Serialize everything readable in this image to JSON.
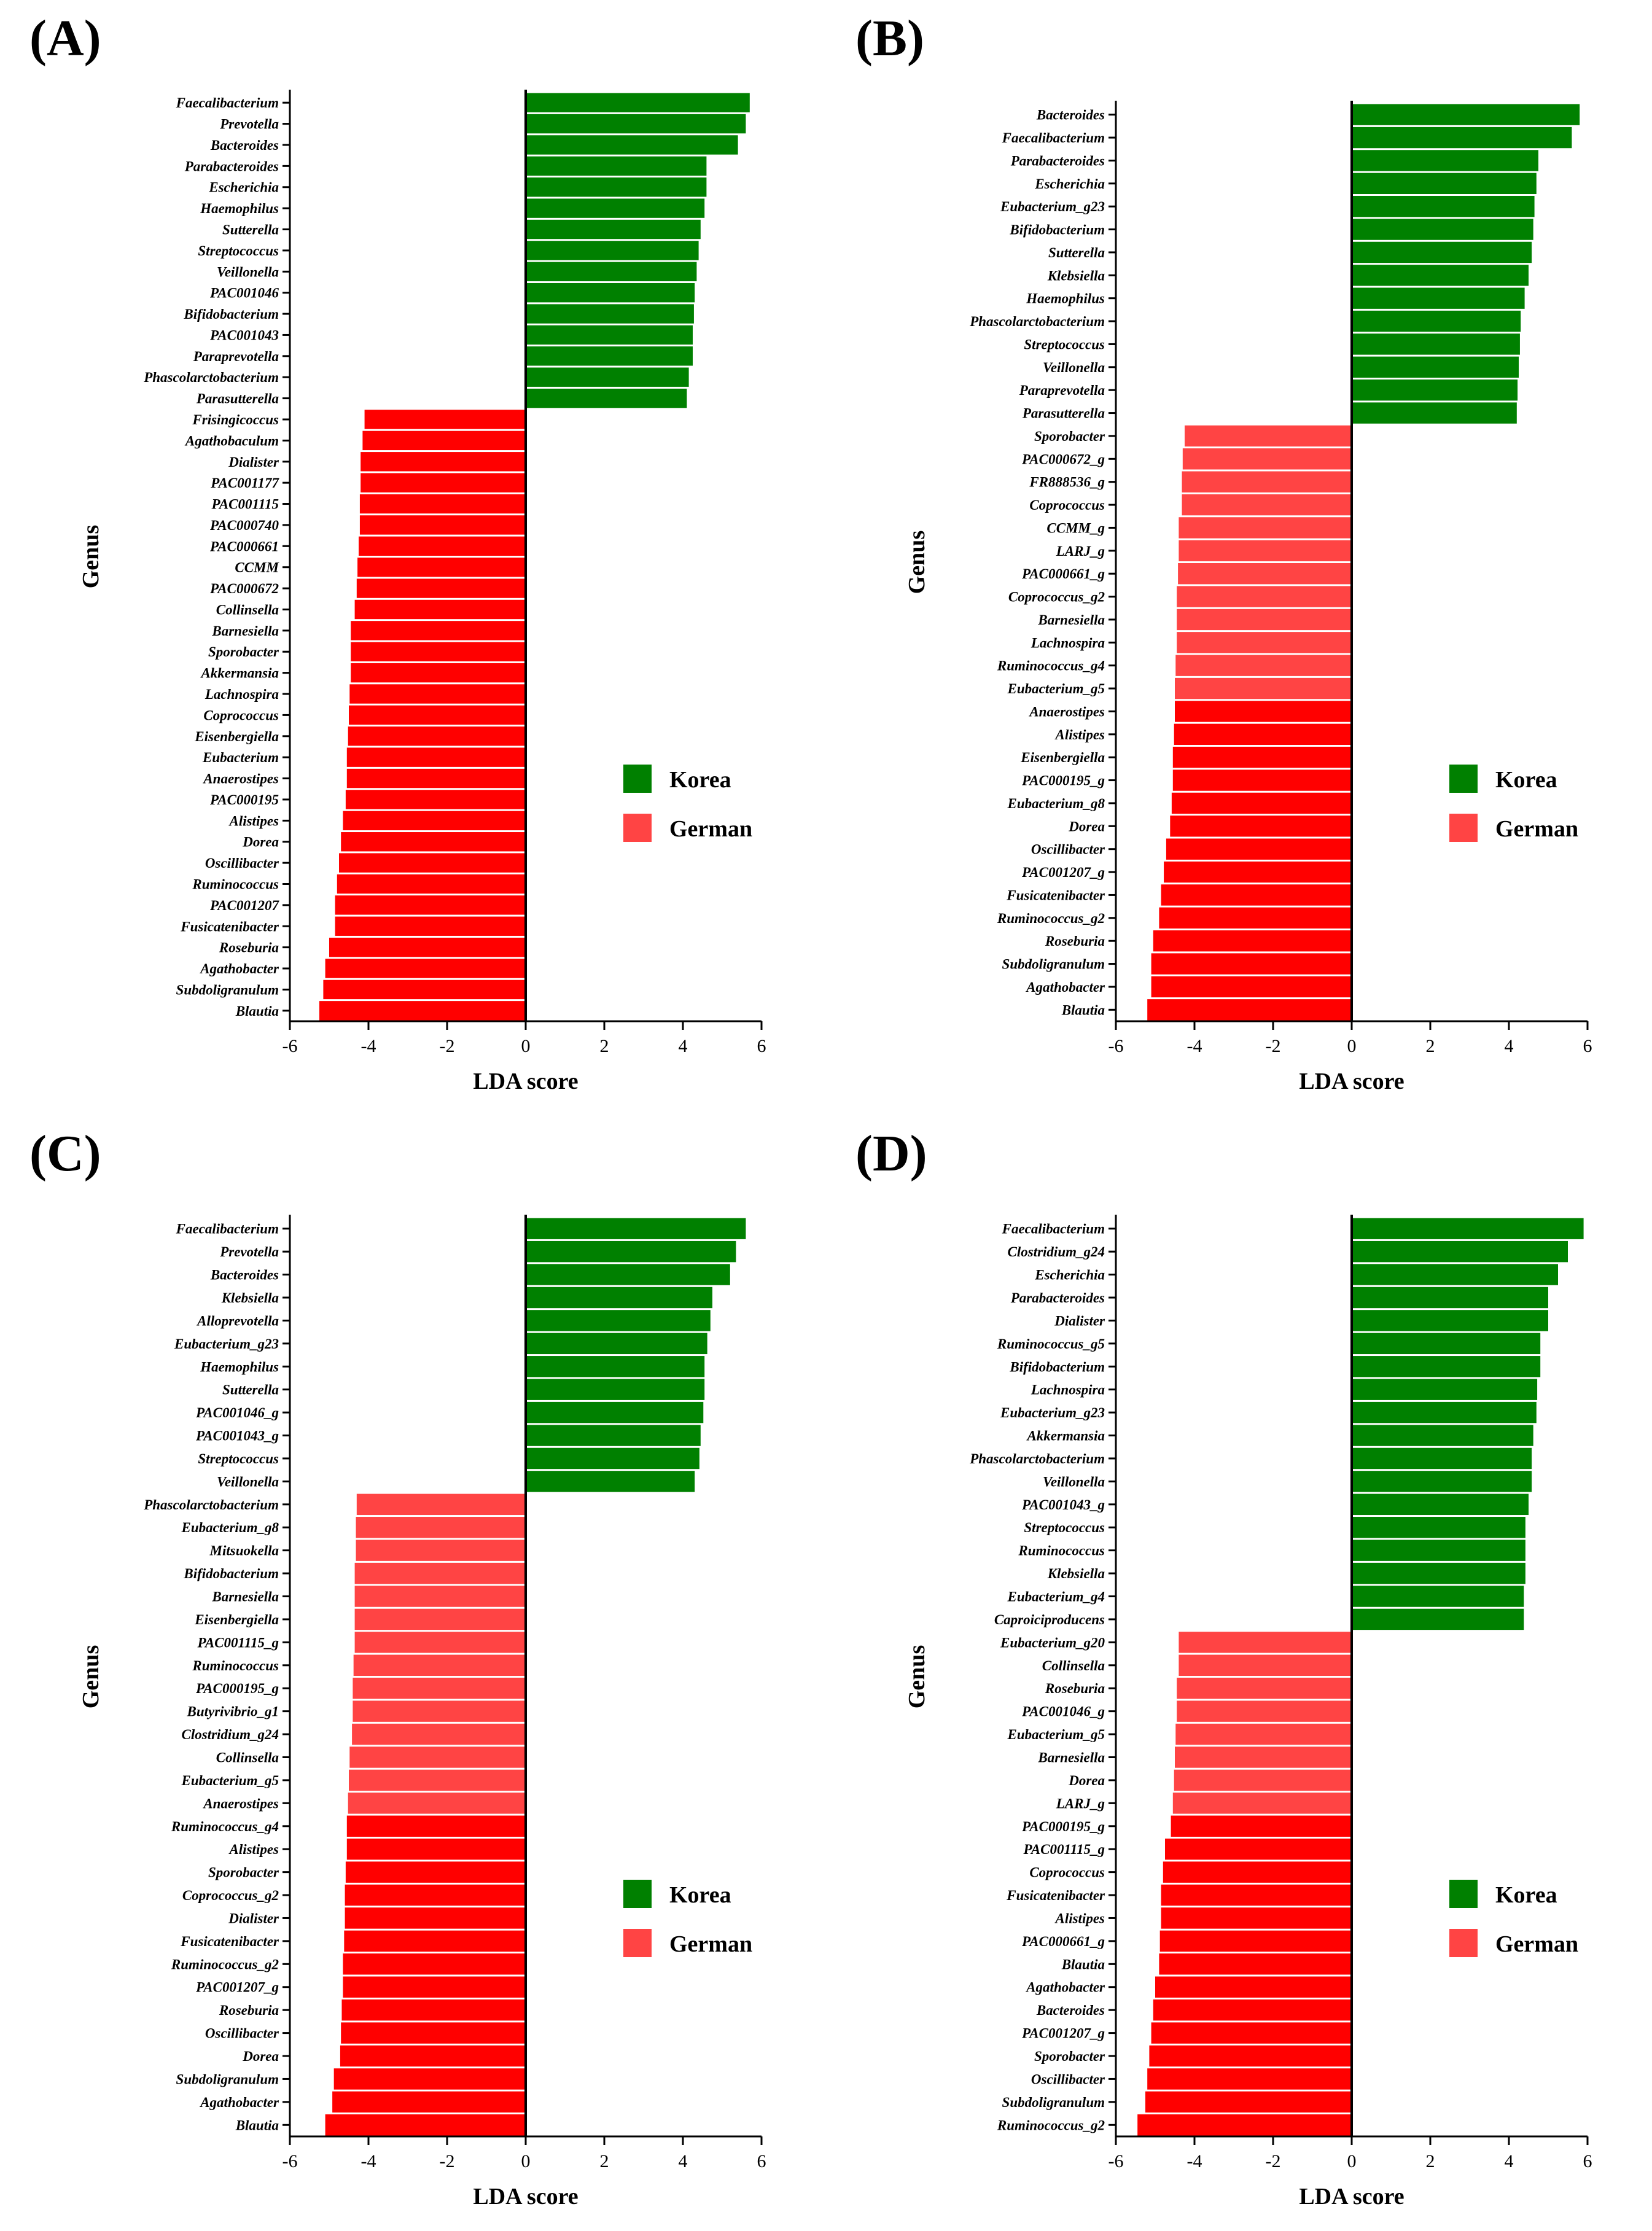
{
  "legend": {
    "korea": "Korea",
    "german": "German"
  },
  "colors": {
    "korea": "#008000",
    "german_strong": "#ff0000",
    "german_light": "#ff4444",
    "axis": "#000000"
  },
  "chart_data": [
    {
      "type": "bar",
      "panel_label": "(A)",
      "xlabel": "LDA score",
      "ylabel": "Genus",
      "xlim": [
        -6,
        6
      ],
      "xticks": [
        "-6",
        "-4",
        "-2",
        "0",
        "2",
        "4",
        "6"
      ],
      "series_style": "strong",
      "categories": [
        "Faecalibacterium",
        "Prevotella",
        "Bacteroides",
        "Parabacteroides",
        "Escherichia",
        "Haemophilus",
        "Sutterella",
        "Streptococcus",
        "Veillonella",
        "PAC001046",
        "Bifidobacterium",
        "PAC001043",
        "Paraprevotella",
        "Phascolarctobacterium",
        "Parasutterella",
        "Frisingicoccus",
        "Agathobaculum",
        "Dialister",
        "PAC001177",
        "PAC001115",
        "PAC000740",
        "PAC000661",
        "CCMM",
        "PAC000672",
        "Collinsella",
        "Barnesiella",
        "Sporobacter",
        "Akkermansia",
        "Lachnospira",
        "Coprococcus",
        "Eisenbergiella",
        "Eubacterium",
        "Anaerostipes",
        "PAC000195",
        "Alistipes",
        "Dorea",
        "Oscillibacter",
        "Ruminococcus",
        "PAC001207",
        "Fusicatenibacter",
        "Roseburia",
        "Agathobacter",
        "Subdoligranulum",
        "Blautia"
      ],
      "values": [
        5.7,
        5.6,
        5.4,
        4.6,
        4.6,
        4.55,
        4.45,
        4.4,
        4.35,
        4.3,
        4.28,
        4.25,
        4.25,
        4.15,
        4.1,
        -4.1,
        -4.15,
        -4.2,
        -4.2,
        -4.22,
        -4.22,
        -4.25,
        -4.28,
        -4.3,
        -4.35,
        -4.45,
        -4.45,
        -4.45,
        -4.48,
        -4.5,
        -4.52,
        -4.55,
        -4.55,
        -4.58,
        -4.65,
        -4.7,
        -4.75,
        -4.8,
        -4.85,
        -4.85,
        -5.0,
        -5.1,
        -5.15,
        -5.25
      ]
    },
    {
      "type": "bar",
      "panel_label": "(B)",
      "xlabel": "LDA score",
      "ylabel": "Genus",
      "xlim": [
        -6,
        6
      ],
      "xticks": [
        "-6",
        "-4",
        "-2",
        "0",
        "2",
        "4",
        "6"
      ],
      "series_style": "mixed",
      "light_count": 12,
      "categories": [
        "Bacteroides",
        "Faecalibacterium",
        "Parabacteroides",
        "Escherichia",
        "Eubacterium_g23",
        "Bifidobacterium",
        "Sutterella",
        "Klebsiella",
        "Haemophilus",
        "Phascolarctobacterium",
        "Streptococcus",
        "Veillonella",
        "Paraprevotella",
        "Parasutterella",
        "Sporobacter",
        "PAC000672_g",
        "FR888536_g",
        "Coprococcus",
        "CCMM_g",
        "LARJ_g",
        "PAC000661_g",
        "Coprococcus_g2",
        "Barnesiella",
        "Lachnospira",
        "Ruminococcus_g4",
        "Eubacterium_g5",
        "Anaerostipes",
        "Alistipes",
        "Eisenbergiella",
        "PAC000195_g",
        "Eubacterium_g8",
        "Dorea",
        "Oscillibacter",
        "PAC001207_g",
        "Fusicatenibacter",
        "Ruminococcus_g2",
        "Roseburia",
        "Subdoligranulum",
        "Agathobacter",
        "Blautia"
      ],
      "values": [
        5.8,
        5.6,
        4.75,
        4.7,
        4.65,
        4.62,
        4.58,
        4.5,
        4.4,
        4.3,
        4.28,
        4.25,
        4.22,
        4.2,
        -4.25,
        -4.3,
        -4.32,
        -4.32,
        -4.4,
        -4.4,
        -4.42,
        -4.45,
        -4.45,
        -4.45,
        -4.48,
        -4.5,
        -4.5,
        -4.52,
        -4.55,
        -4.55,
        -4.58,
        -4.62,
        -4.72,
        -4.78,
        -4.85,
        -4.9,
        -5.05,
        -5.1,
        -5.1,
        -5.2
      ]
    },
    {
      "type": "bar",
      "panel_label": "(C)",
      "xlabel": "LDA score",
      "ylabel": "Genus",
      "xlim": [
        -6,
        6
      ],
      "xticks": [
        "-6",
        "-4",
        "-2",
        "0",
        "2",
        "4",
        "6"
      ],
      "series_style": "mixed",
      "light_count": 14,
      "categories": [
        "Faecalibacterium",
        "Prevotella",
        "Bacteroides",
        "Klebsiella",
        "Alloprevotella",
        "Eubacterium_g23",
        "Haemophilus",
        "Sutterella",
        "PAC001046_g",
        "PAC001043_g",
        "Streptococcus",
        "Veillonella",
        "Phascolarctobacterium",
        "Eubacterium_g8",
        "Mitsuokella",
        "Bifidobacterium",
        "Barnesiella",
        "Eisenbergiella",
        "PAC001115_g",
        "Ruminococcus",
        "PAC000195_g",
        "Butyrivibrio_g1",
        "Clostridium_g24",
        "Collinsella",
        "Eubacterium_g5",
        "Anaerostipes",
        "Ruminococcus_g4",
        "Alistipes",
        "Sporobacter",
        "Coprococcus_g2",
        "Dialister",
        "Fusicatenibacter",
        "Ruminococcus_g2",
        "PAC001207_g",
        "Roseburia",
        "Oscillibacter",
        "Dorea",
        "Subdoligranulum",
        "Agathobacter",
        "Blautia"
      ],
      "values": [
        5.6,
        5.35,
        5.2,
        4.75,
        4.7,
        4.62,
        4.55,
        4.55,
        4.52,
        4.45,
        4.42,
        4.3,
        -4.3,
        -4.32,
        -4.32,
        -4.35,
        -4.35,
        -4.35,
        -4.35,
        -4.38,
        -4.4,
        -4.4,
        -4.42,
        -4.48,
        -4.5,
        -4.52,
        -4.55,
        -4.55,
        -4.58,
        -4.6,
        -4.6,
        -4.62,
        -4.65,
        -4.65,
        -4.68,
        -4.7,
        -4.72,
        -4.88,
        -4.92,
        -5.1
      ]
    },
    {
      "type": "bar",
      "panel_label": "(D)",
      "xlabel": "LDA score",
      "ylabel": "Genus",
      "xlim": [
        -6,
        6
      ],
      "xticks": [
        "-6",
        "-4",
        "-2",
        "0",
        "2",
        "4",
        "6"
      ],
      "series_style": "mixed",
      "light_count": 8,
      "categories": [
        "Faecalibacterium",
        "Clostridium_g24",
        "Escherichia",
        "Parabacteroides",
        "Dialister",
        "Ruminococcus_g5",
        "Bifidobacterium",
        "Lachnospira",
        "Eubacterium_g23",
        "Akkermansia",
        "Phascolarctobacterium",
        "Veillonella",
        "PAC001043_g",
        "Streptococcus",
        "Ruminococcus",
        "Klebsiella",
        "Eubacterium_g4",
        "Caproiciproducens",
        "Eubacterium_g20",
        "Collinsella",
        "Roseburia",
        "PAC001046_g",
        "Eubacterium_g5",
        "Barnesiella",
        "Dorea",
        "LARJ_g",
        "PAC000195_g",
        "PAC001115_g",
        "Coprococcus",
        "Fusicatenibacter",
        "Alistipes",
        "PAC000661_g",
        "Blautia",
        "Agathobacter",
        "Bacteroides",
        "PAC001207_g",
        "Sporobacter",
        "Oscillibacter",
        "Subdoligranulum",
        "Ruminococcus_g2"
      ],
      "values": [
        5.9,
        5.5,
        5.25,
        5.0,
        5.0,
        4.8,
        4.8,
        4.72,
        4.7,
        4.62,
        4.58,
        4.58,
        4.5,
        4.42,
        4.42,
        4.42,
        4.38,
        4.38,
        -4.4,
        -4.4,
        -4.45,
        -4.45,
        -4.48,
        -4.5,
        -4.52,
        -4.55,
        -4.6,
        -4.75,
        -4.8,
        -4.85,
        -4.85,
        -4.88,
        -4.9,
        -5.0,
        -5.05,
        -5.1,
        -5.15,
        -5.2,
        -5.25,
        -5.45
      ]
    }
  ]
}
